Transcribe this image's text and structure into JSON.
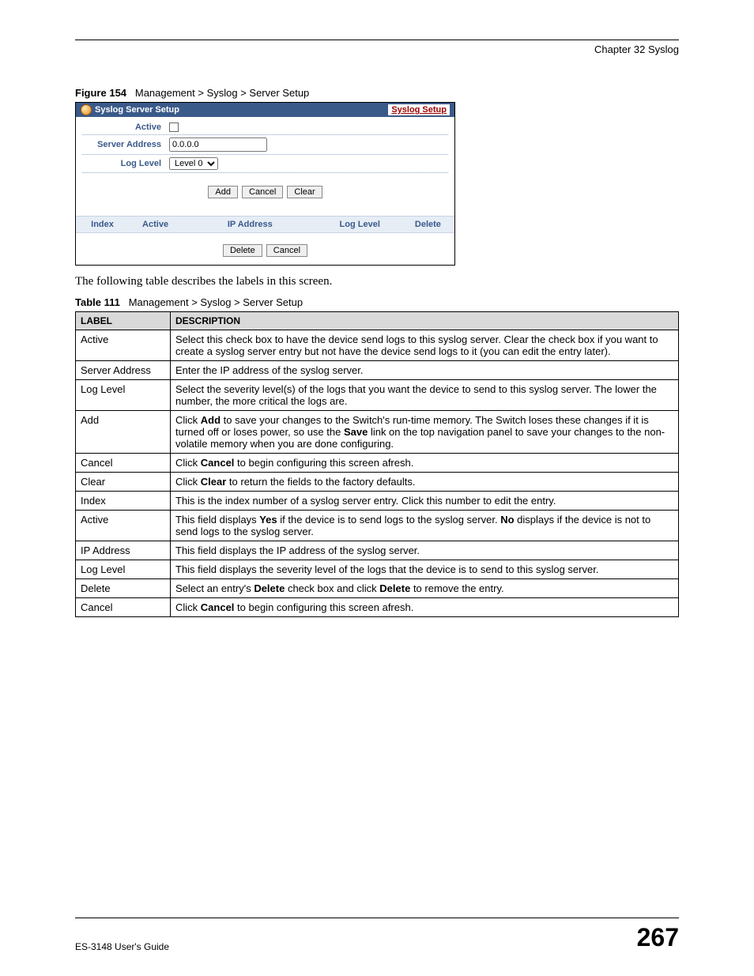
{
  "header": {
    "chapter": "Chapter 32 Syslog"
  },
  "figure": {
    "caption_label": "Figure 154",
    "caption_text": "Management > Syslog > Server Setup",
    "titlebar_title": "Syslog Server Setup",
    "link_text": "Syslog Setup",
    "rows": {
      "active_label": "Active",
      "server_address_label": "Server Address",
      "server_address_value": "0.0.0.0",
      "log_level_label": "Log Level",
      "log_level_value": "Level 0"
    },
    "buttons": {
      "add": "Add",
      "cancel": "Cancel",
      "clear": "Clear"
    },
    "list_headers": {
      "index": "Index",
      "active": "Active",
      "ip": "IP Address",
      "log_level": "Log Level",
      "del": "Delete"
    },
    "bottom_buttons": {
      "delete": "Delete",
      "cancel": "Cancel"
    }
  },
  "intro": "The following table describes the labels in this screen.",
  "table": {
    "caption_label": "Table 111",
    "caption_text": "Management > Syslog > Server Setup",
    "head_label": "LABEL",
    "head_desc": "DESCRIPTION",
    "rows": [
      {
        "label": "Active",
        "desc": "Select this check box to have the device send logs to this syslog server. Clear the check box if you want to create a syslog server entry but not have the device send logs to it (you can edit the entry later)."
      },
      {
        "label": "Server Address",
        "desc": "Enter the IP address of the syslog server."
      },
      {
        "label": "Log Level",
        "desc": "Select the severity level(s) of the logs that you want the device to send to this syslog server. The lower the number, the more critical the logs are."
      },
      {
        "label": "Add",
        "desc_html": "Click <b>Add</b> to save your changes to the Switch's run-time memory. The Switch loses these changes if it is turned off or loses power, so use the <b>Save</b> link on the top navigation panel to save your changes to the non-volatile memory when you are done configuring."
      },
      {
        "label": "Cancel",
        "desc_html": "Click <b>Cancel</b> to begin configuring this screen afresh."
      },
      {
        "label": "Clear",
        "desc_html": "Click <b>Clear</b> to return the fields to the factory defaults."
      },
      {
        "label": "Index",
        "desc": "This is the index number of a syslog server entry. Click this number to edit the entry."
      },
      {
        "label": "Active",
        "desc_html": "This field displays <b>Yes</b> if the device is to send logs to the syslog server. <b>No</b> displays if the device is not to send logs to the syslog server."
      },
      {
        "label": "IP Address",
        "desc": "This field displays the IP address of the syslog server."
      },
      {
        "label": "Log Level",
        "desc": "This field displays the severity level of the logs that the device is to send to this syslog server."
      },
      {
        "label": "Delete",
        "desc_html": "Select an entry's <b>Delete</b> check box and click <b>Delete</b> to remove the entry."
      },
      {
        "label": "Cancel",
        "desc_html": "Click <b>Cancel</b> to begin configuring this screen afresh."
      }
    ]
  },
  "footer": {
    "guide": "ES-3148 User's Guide",
    "page": "267"
  }
}
